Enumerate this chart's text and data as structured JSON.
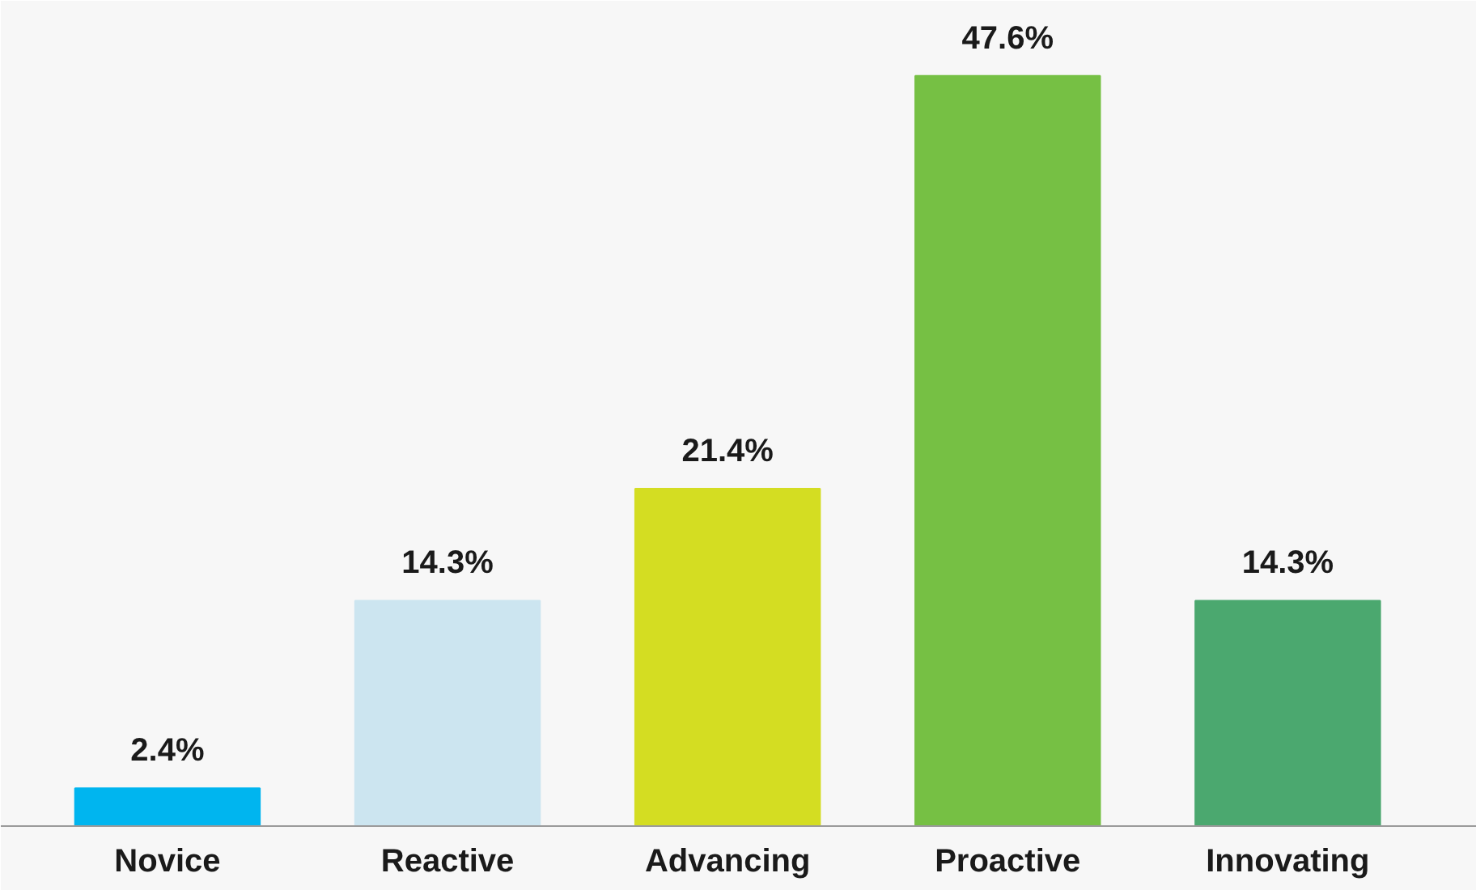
{
  "chart_data": {
    "type": "bar",
    "categories": [
      "Novice",
      "Reactive",
      "Advancing",
      "Proactive",
      "Innovating"
    ],
    "values": [
      2.4,
      14.3,
      21.4,
      47.6,
      14.3
    ],
    "colors": [
      "#00b5ef",
      "#cce5f0",
      "#d4dd22",
      "#76c044",
      "#4ba86f"
    ],
    "value_labels": [
      "2.4%",
      "14.3%",
      "21.4%",
      "47.6%",
      "14.3%"
    ],
    "grid": false
  }
}
